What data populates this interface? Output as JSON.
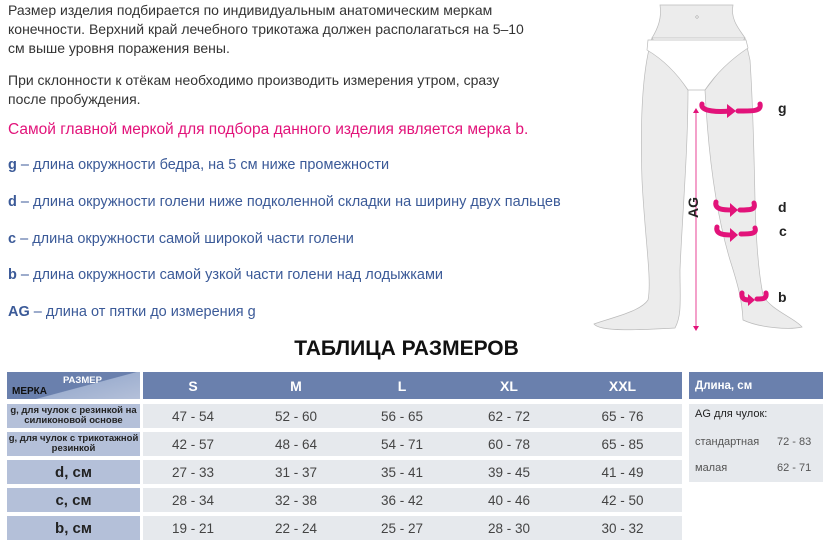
{
  "intro": {
    "p1_l1": "Размер изделия подбирается по индивидуальным анатомическим меркам",
    "p1_l2": "конечности. Верхний край лечебного трикотажа должен располагаться на 5–10",
    "p1_l3": "см выше уровня поражения вены.",
    "p2_l1": "При склонности к отёкам необходимо производить измерения утром, сразу",
    "p2_l2": "после пробуждения.",
    "highlight": "Самой главной меркой для подбора данного изделия является мерка b."
  },
  "measures": [
    {
      "key": "g",
      "text": " – длина окружности бедра, на 5 см ниже промежности"
    },
    {
      "key": "d",
      "text": " – длина окружности голени ниже подколенной складки на ширину двух пальцев"
    },
    {
      "key": "c",
      "text": " – длина окружности самой широкой части голени"
    },
    {
      "key": "b",
      "text": " – длина окружности самой узкой части голени над лодыжками"
    },
    {
      "key": "AG",
      "text": " – длина от пятки до измерения g"
    }
  ],
  "figure": {
    "labels": [
      "g",
      "d",
      "c",
      "b",
      "AG"
    ]
  },
  "colors": {
    "accent": "#e2137a",
    "header": "#6a80ad",
    "label": "#b4c0d9",
    "cell": "#e6e9ed",
    "text_blue": "#3b5a98"
  },
  "table": {
    "title": "ТАБЛИЦА РАЗМЕРОВ",
    "corner_size": "РАЗМЕР",
    "corner_measure": "МЕРКА",
    "sizes": [
      "S",
      "M",
      "L",
      "XL",
      "XXL"
    ],
    "rows": [
      {
        "label": "g, для чулок с  резинкой на силиконовой основе",
        "values": [
          "47 - 54",
          "52 - 60",
          "56 - 65",
          "62 - 72",
          "65 - 76"
        ]
      },
      {
        "label": "g, для чулок с трикотажной резинкой",
        "values": [
          "42 - 57",
          "48 - 64",
          "54 - 71",
          "60 - 78",
          "65 - 85"
        ]
      },
      {
        "label": "d, см",
        "values": [
          "27 - 33",
          "31 - 37",
          "35 - 41",
          "39 - 45",
          "41 - 49"
        ]
      },
      {
        "label": "c, см",
        "values": [
          "28 - 34",
          "32 - 38",
          "36 - 42",
          "40 - 46",
          "42 - 50"
        ]
      },
      {
        "label": "b, см",
        "values": [
          "19 - 21",
          "22 - 24",
          "25 - 27",
          "28 - 30",
          "30 - 32"
        ]
      }
    ]
  },
  "length_table": {
    "header": "Длина, см",
    "subheader": "AG для чулок:",
    "rows": [
      {
        "label": "стандартная",
        "value": "72 - 83"
      },
      {
        "label": "малая",
        "value": "62 - 71"
      }
    ]
  }
}
